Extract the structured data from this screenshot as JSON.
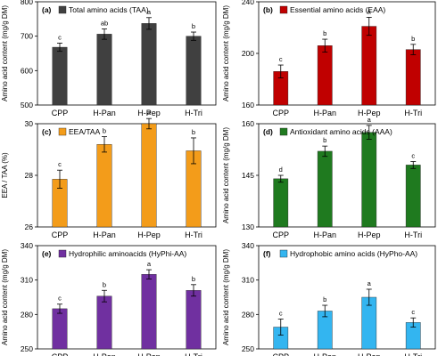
{
  "chart_data": [
    {
      "type": "bar",
      "panel": "(a)",
      "legend": "Total amino acids (TAA)",
      "ylabel": "Amino acid content (mg/g DM)",
      "color": "#404040",
      "categories": [
        "CPP",
        "H-Pan",
        "H-Pep",
        "H-Tri"
      ],
      "values": [
        668,
        706,
        737,
        700
      ],
      "errors": [
        12,
        15,
        17,
        12
      ],
      "letters": [
        "c",
        "ab",
        "a",
        "b"
      ],
      "ylim": [
        500,
        800
      ],
      "yticks": [
        500,
        600,
        700,
        800
      ],
      "ytick_labels": [
        "500",
        "600",
        "700",
        "800"
      ]
    },
    {
      "type": "bar",
      "panel": "(b)",
      "legend": "Essential amino acids (EAA)",
      "ylabel": "Amino acid content (mg/g DM)",
      "color": "#c00000",
      "categories": [
        "CPP",
        "H-Pan",
        "H-Pep",
        "H-Tri"
      ],
      "values": [
        186,
        206,
        221,
        203
      ],
      "errors": [
        5,
        5,
        7,
        4
      ],
      "letters": [
        "c",
        "b",
        "a",
        "b"
      ],
      "ylim": [
        160,
        240
      ],
      "yticks": [
        160,
        200,
        240
      ],
      "ytick_labels": [
        "160",
        "200",
        "240"
      ]
    },
    {
      "type": "bar",
      "panel": "(c)",
      "legend": "EEA/TAA",
      "ylabel": "EEA / TAA (%)",
      "color": "#f39c1a",
      "categories": [
        "CPP",
        "H-Pan",
        "H-Pep",
        "H-Tri"
      ],
      "values": [
        27.85,
        29.2,
        30.0,
        28.95
      ],
      "errors": [
        0.35,
        0.3,
        0.2,
        0.5
      ],
      "letters": [
        "c",
        "b",
        "a",
        "b"
      ],
      "ylim": [
        26,
        30
      ],
      "yticks": [
        26,
        28,
        30
      ],
      "ytick_labels": [
        "26",
        "28",
        "30"
      ]
    },
    {
      "type": "bar",
      "panel": "(d)",
      "legend": "Antioxidant amino acids (AAA)",
      "ylabel": "Amino acid content (mg/g DM)",
      "color": "#1f7a1f",
      "categories": [
        "CPP",
        "H-Pan",
        "H-Pep",
        "H-Tri"
      ],
      "values": [
        144,
        152,
        157.5,
        148
      ],
      "errors": [
        1,
        1.5,
        2,
        1
      ],
      "letters": [
        "d",
        "b",
        "a",
        "c"
      ],
      "ylim": [
        130,
        160
      ],
      "yticks": [
        130,
        145,
        160
      ],
      "ytick_labels": [
        "130",
        "145",
        "160"
      ]
    },
    {
      "type": "bar",
      "panel": "(e)",
      "legend": "Hydrophilic aminoacids (HyPhi-AA)",
      "ylabel": "Amino acid content (mg/g DM)",
      "color": "#7030a0",
      "categories": [
        "CPP",
        "H-Pan",
        "H-Pep",
        "H-Tri"
      ],
      "values": [
        285,
        296,
        315,
        301
      ],
      "errors": [
        4,
        5,
        4,
        5
      ],
      "letters": [
        "c",
        "b",
        "a",
        "b"
      ],
      "ylim": [
        250,
        340
      ],
      "yticks": [
        250,
        280,
        310,
        340
      ],
      "ytick_labels": [
        "250",
        "280",
        "310",
        "340"
      ]
    },
    {
      "type": "bar",
      "panel": "(f)",
      "legend": "Hydrophobic amino acids (HyPho-AA)",
      "ylabel": "Amino acid content (mg/g DM)",
      "color": "#33b5f0",
      "categories": [
        "CPP",
        "H-Pan",
        "H-Pep",
        "H-Tri"
      ],
      "values": [
        269,
        283,
        295,
        273
      ],
      "errors": [
        7,
        5,
        7,
        4
      ],
      "letters": [
        "c",
        "b",
        "a",
        "c"
      ],
      "ylim": [
        250,
        340
      ],
      "yticks": [
        250,
        280,
        310,
        340
      ],
      "ytick_labels": [
        "250",
        "280",
        "310",
        "340"
      ]
    }
  ]
}
